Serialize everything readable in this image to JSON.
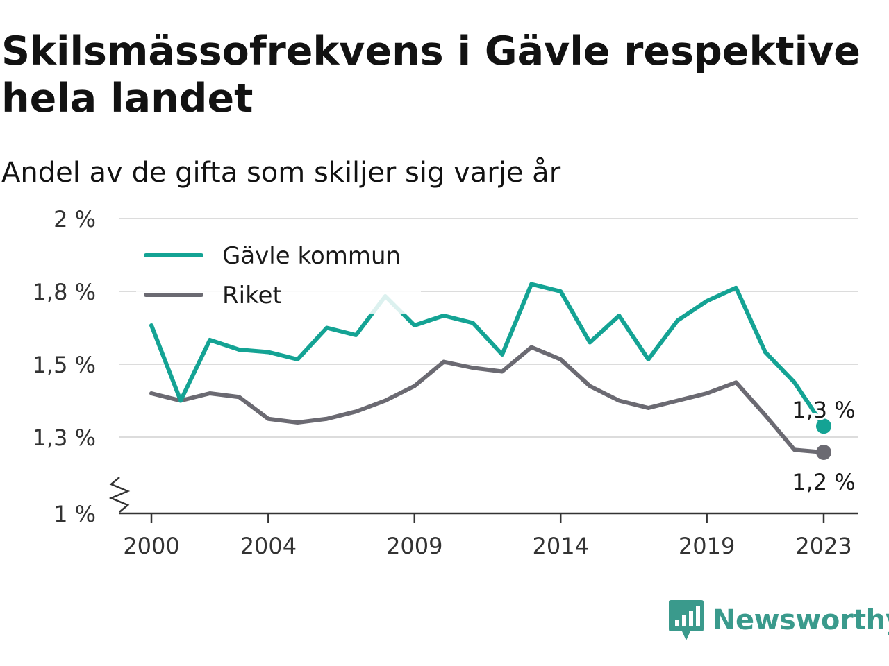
{
  "title": "Skilsmässofrekvens i Gävle respektive hela landet",
  "subtitle": "Andel av de gifta som skiljer sig varje år",
  "brand": {
    "name": "Newsworthy",
    "icon": "newsworthy-logo-icon",
    "color": "#3a9a8c"
  },
  "chart_data": {
    "type": "line",
    "x": [
      2000,
      2001,
      2002,
      2003,
      2004,
      2005,
      2006,
      2007,
      2008,
      2009,
      2010,
      2011,
      2012,
      2013,
      2014,
      2015,
      2016,
      2017,
      2018,
      2019,
      2020,
      2021,
      2022,
      2023
    ],
    "x_tick_values": [
      2000,
      2004,
      2009,
      2014,
      2019,
      2023
    ],
    "x_tick_labels": [
      "2000",
      "2004",
      "2009",
      "2014",
      "2019",
      "2023"
    ],
    "y_tick_values": [
      1.0,
      1.3,
      1.5,
      1.8,
      2.0
    ],
    "y_tick_labels": [
      "1 %",
      "1,3 %",
      "1,5 %",
      "1,8 %",
      "2 %"
    ],
    "ylim": [
      1.0,
      2.0
    ],
    "broken_y_axis": true,
    "grid": true,
    "legend_position": "top-left",
    "series": [
      {
        "name": "Gävle kommun",
        "color": "#14a394",
        "values": [
          1.66,
          1.4,
          1.6,
          1.56,
          1.55,
          1.52,
          1.65,
          1.62,
          1.78,
          1.66,
          1.7,
          1.67,
          1.54,
          1.82,
          1.8,
          1.59,
          1.7,
          1.52,
          1.68,
          1.76,
          1.81,
          1.55,
          1.45,
          1.33
        ],
        "end_label": "1,3 %"
      },
      {
        "name": "Riket",
        "color": "#6b6a72",
        "values": [
          1.42,
          1.4,
          1.42,
          1.41,
          1.35,
          1.34,
          1.35,
          1.37,
          1.4,
          1.44,
          1.51,
          1.49,
          1.48,
          1.57,
          1.52,
          1.44,
          1.4,
          1.38,
          1.4,
          1.42,
          1.45,
          1.36,
          1.25,
          1.24
        ],
        "end_label": "1,2 %"
      }
    ]
  }
}
